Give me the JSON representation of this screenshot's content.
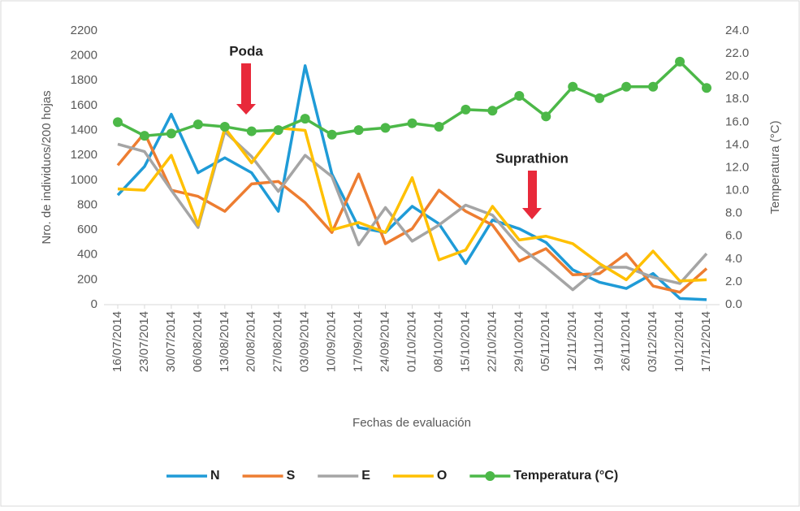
{
  "chart_data": {
    "type": "line",
    "x_label": "Fechas de evaluación",
    "y_label": "Nro. de individuos/200 hojas",
    "y2_label": "Temperatura (°C)",
    "annotations": [
      "Poda",
      "Suprathion"
    ],
    "categories": [
      "16/07/2014",
      "23/07/2014",
      "30/07/2014",
      "06/08/2014",
      "13/08/2014",
      "20/08/2014",
      "27/08/2014",
      "03/09/2014",
      "10/09/2014",
      "17/09/2014",
      "24/09/2014",
      "01/10/2014",
      "08/10/2014",
      "15/10/2014",
      "22/10/2014",
      "29/10/2014",
      "05/11/2014",
      "12/11/2014",
      "19/11/2014",
      "26/11/2014",
      "03/12/2014",
      "10/12/2014",
      "17/12/2014"
    ],
    "series": [
      {
        "name": "N",
        "color": "#1f9bd7",
        "values": [
          880,
          1110,
          1530,
          1060,
          1180,
          1060,
          750,
          1920,
          1050,
          620,
          580,
          790,
          650,
          330,
          680,
          610,
          500,
          280,
          180,
          130,
          250,
          50,
          40
        ]
      },
      {
        "name": "S",
        "color": "#ed7d31",
        "values": [
          1120,
          1380,
          920,
          870,
          750,
          970,
          990,
          820,
          580,
          1050,
          490,
          610,
          920,
          750,
          640,
          350,
          450,
          240,
          250,
          410,
          150,
          100,
          290
        ]
      },
      {
        "name": "E",
        "color": "#a5a5a5",
        "values": [
          1290,
          1230,
          920,
          620,
          1390,
          1190,
          910,
          1200,
          1030,
          480,
          780,
          510,
          640,
          800,
          720,
          470,
          300,
          120,
          300,
          300,
          220,
          170,
          410
        ]
      },
      {
        "name": "O",
        "color": "#ffc000",
        "values": [
          930,
          920,
          1200,
          640,
          1420,
          1140,
          1420,
          1400,
          600,
          660,
          580,
          1020,
          360,
          440,
          790,
          520,
          550,
          490,
          330,
          200,
          430,
          190,
          200
        ]
      },
      {
        "name": "Temperatura (°C)",
        "color": "#4cb848",
        "axis": "y2",
        "marker": true,
        "values": [
          16.0,
          14.8,
          15.0,
          15.8,
          15.6,
          15.2,
          15.3,
          16.3,
          14.9,
          15.3,
          15.5,
          15.9,
          15.6,
          17.1,
          17.0,
          18.3,
          16.5,
          19.1,
          18.1,
          19.1,
          19.1,
          21.3,
          19.0
        ]
      }
    ],
    "ylim": [
      0,
      2200
    ],
    "yticks": [
      0,
      200,
      400,
      600,
      800,
      1000,
      1200,
      1400,
      1600,
      1800,
      2000,
      2200
    ],
    "y2lim": [
      0,
      24
    ],
    "y2ticks": [
      {
        "value": 0,
        "label": "0.0"
      },
      {
        "value": 2,
        "label": "2.0"
      },
      {
        "value": 4,
        "label": "4.0"
      },
      {
        "value": 6,
        "label": "6.0"
      },
      {
        "value": 8,
        "label": "8.0"
      },
      {
        "value": 10,
        "label": "10.0"
      },
      {
        "value": 12,
        "label": "12.0"
      },
      {
        "value": 14,
        "label": "14.0"
      },
      {
        "value": 16,
        "label": "16.0"
      },
      {
        "value": 18,
        "label": "18.0"
      },
      {
        "value": 20,
        "label": "20.0"
      },
      {
        "value": 22,
        "label": "22.0"
      },
      {
        "value": 24,
        "label": "24.0"
      }
    ],
    "legend": "bottom"
  }
}
